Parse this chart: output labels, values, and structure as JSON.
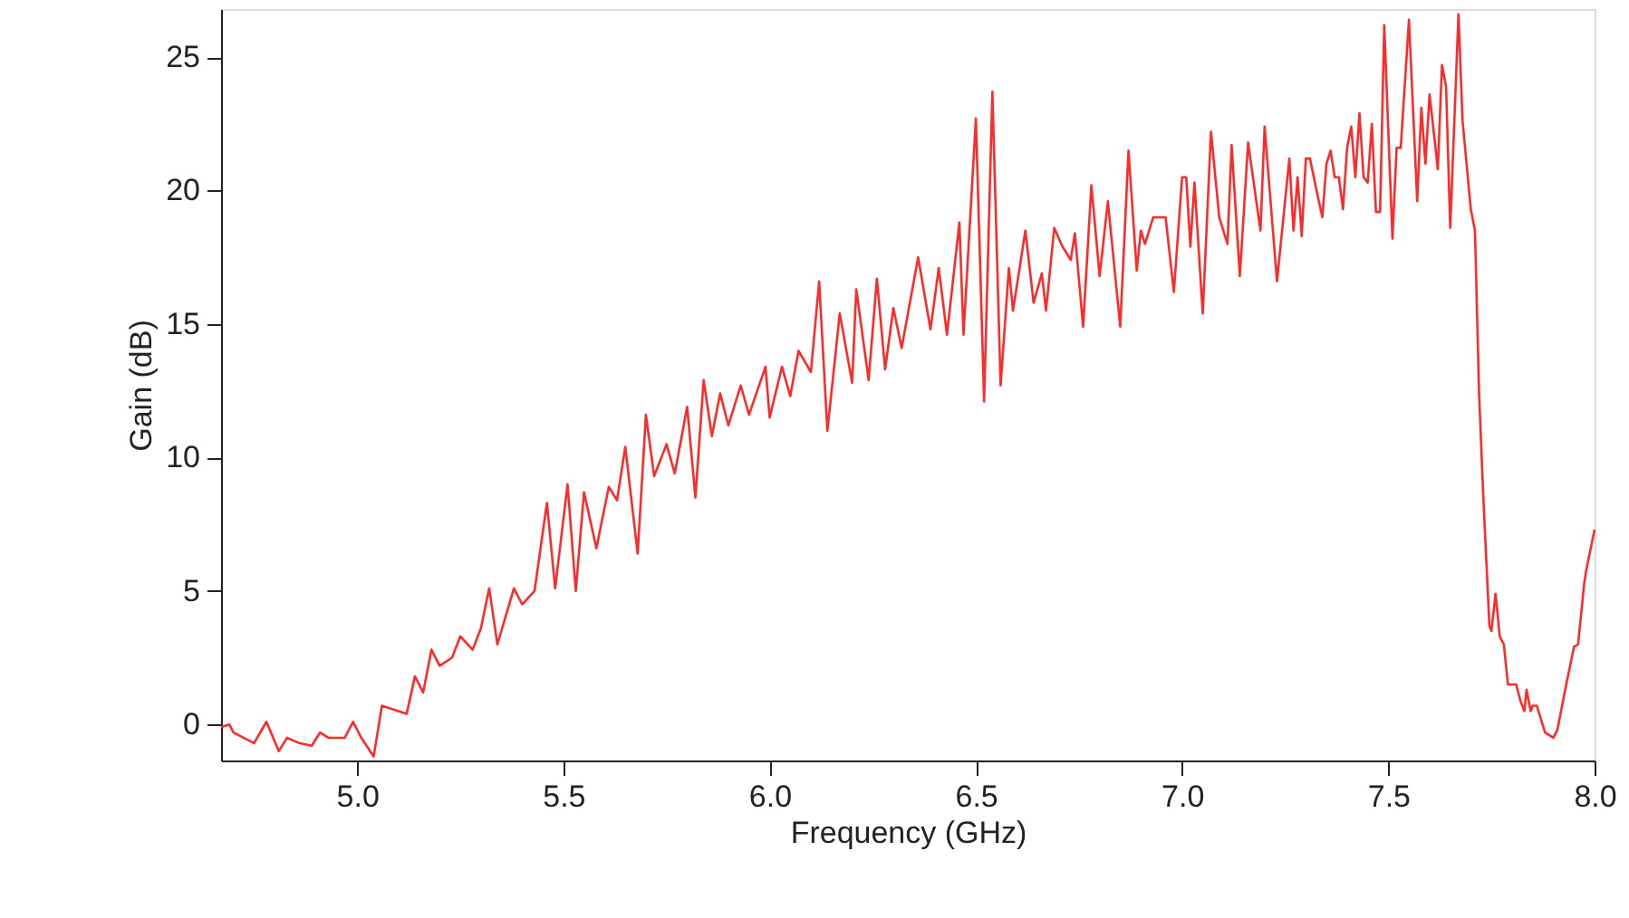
{
  "chart_data": {
    "type": "line",
    "xlabel": "Frequency (GHz)",
    "ylabel": "Gain (dB)",
    "xlim": [
      4.67,
      8.0
    ],
    "ylim": [
      -1.35,
      26.8
    ],
    "xticks": [
      {
        "value": 5,
        "label": "5.0"
      },
      5.5,
      {
        "value": 6,
        "label": "6.0"
      },
      6.5,
      {
        "value": 7,
        "label": "7.0"
      },
      7.5,
      {
        "value": 8,
        "label": "8.0"
      }
    ],
    "yticks": [
      0,
      5,
      10,
      15,
      20,
      25
    ],
    "grid": false,
    "marker": "none",
    "line_style": "solid",
    "series": [
      {
        "color": "#ff2a2a",
        "x": [
          4.67,
          4.69,
          4.7,
          4.75,
          4.78,
          4.81,
          4.83,
          4.86,
          4.89,
          4.91,
          4.93,
          4.97,
          4.99,
          5.01,
          5.04,
          5.06,
          5.12,
          5.14,
          5.16,
          5.18,
          5.2,
          5.23,
          5.25,
          5.28,
          5.3,
          5.32,
          5.34,
          5.38,
          5.4,
          5.43,
          5.46,
          5.48,
          5.51,
          5.53,
          5.55,
          5.58,
          5.61,
          5.63,
          5.65,
          5.68,
          5.7,
          5.72,
          5.75,
          5.77,
          5.8,
          5.82,
          5.84,
          5.86,
          5.88,
          5.9,
          5.93,
          5.95,
          5.99,
          6.0,
          6.03,
          6.05,
          6.07,
          6.1,
          6.12,
          6.14,
          6.17,
          6.2,
          6.21,
          6.24,
          6.26,
          6.28,
          6.3,
          6.32,
          6.36,
          6.39,
          6.41,
          6.43,
          6.46,
          6.47,
          6.5,
          6.52,
          6.54,
          6.56,
          6.58,
          6.59,
          6.62,
          6.64,
          6.66,
          6.67,
          6.69,
          6.71,
          6.73,
          6.74,
          6.76,
          6.78,
          6.8,
          6.82,
          6.85,
          6.87,
          6.89,
          6.9,
          6.91,
          6.93,
          6.96,
          6.98,
          7.0,
          7.01,
          7.02,
          7.03,
          7.05,
          7.07,
          7.09,
          7.11,
          7.12,
          7.14,
          7.16,
          7.19,
          7.2,
          7.23,
          7.26,
          7.27,
          7.28,
          7.29,
          7.3,
          7.31,
          7.33,
          7.34,
          7.35,
          7.36,
          7.37,
          7.38,
          7.39,
          7.4,
          7.41,
          7.42,
          7.43,
          7.44,
          7.45,
          7.46,
          7.47,
          7.48,
          7.49,
          7.51,
          7.52,
          7.53,
          7.55,
          7.57,
          7.58,
          7.59,
          7.6,
          7.62,
          7.63,
          7.64,
          7.65,
          7.67,
          7.68,
          7.7,
          7.71,
          7.72,
          7.73,
          7.745,
          7.75,
          7.76,
          7.77,
          7.78,
          7.79,
          7.81,
          7.82,
          7.83,
          7.835,
          7.845,
          7.85,
          7.86,
          7.88,
          7.9,
          7.91,
          7.93,
          7.95,
          7.96,
          7.975,
          7.98,
          8.0
        ],
        "values": [
          -0.1,
          0.0,
          -0.3,
          -0.7,
          0.1,
          -1.0,
          -0.5,
          -0.7,
          -0.8,
          -0.3,
          -0.5,
          -0.5,
          0.1,
          -0.5,
          -1.2,
          0.7,
          0.4,
          1.8,
          1.2,
          2.8,
          2.2,
          2.5,
          3.3,
          2.8,
          3.6,
          5.1,
          3.0,
          5.1,
          4.5,
          5.0,
          8.3,
          5.1,
          9.0,
          5.0,
          8.7,
          6.6,
          8.9,
          8.4,
          10.4,
          6.4,
          11.6,
          9.3,
          10.5,
          9.4,
          11.9,
          8.5,
          12.9,
          10.8,
          12.4,
          11.2,
          12.7,
          11.6,
          13.4,
          11.5,
          13.4,
          12.3,
          14.0,
          13.2,
          16.6,
          11.0,
          15.4,
          12.8,
          16.3,
          12.9,
          16.7,
          13.3,
          15.6,
          14.1,
          17.5,
          14.8,
          17.1,
          14.6,
          18.8,
          14.6,
          22.7,
          12.1,
          23.7,
          12.7,
          17.1,
          15.5,
          18.5,
          15.8,
          16.9,
          15.5,
          18.6,
          17.9,
          17.4,
          18.4,
          14.9,
          20.2,
          16.8,
          19.6,
          14.9,
          21.5,
          17.0,
          18.5,
          18.0,
          19.0,
          19.0,
          16.2,
          20.5,
          20.5,
          17.9,
          20.3,
          15.4,
          22.2,
          19.0,
          18.0,
          21.7,
          16.8,
          21.8,
          18.5,
          22.4,
          16.6,
          21.2,
          18.5,
          20.5,
          18.3,
          21.2,
          21.2,
          19.7,
          19.0,
          21.0,
          21.5,
          20.5,
          20.5,
          19.3,
          21.6,
          22.4,
          20.5,
          22.9,
          20.5,
          20.3,
          22.5,
          19.2,
          19.2,
          26.2,
          18.2,
          21.6,
          21.6,
          26.4,
          19.6,
          23.1,
          21.0,
          23.6,
          20.8,
          24.7,
          23.9,
          18.6,
          26.6,
          22.6,
          19.3,
          18.5,
          12.4,
          8.6,
          3.7,
          3.5,
          4.9,
          3.3,
          3.0,
          1.5,
          1.5,
          0.9,
          0.5,
          1.3,
          0.5,
          0.7,
          0.7,
          -0.3,
          -0.5,
          -0.2,
          1.4,
          2.9,
          3.0,
          5.3,
          5.8,
          7.3
        ]
      }
    ]
  }
}
